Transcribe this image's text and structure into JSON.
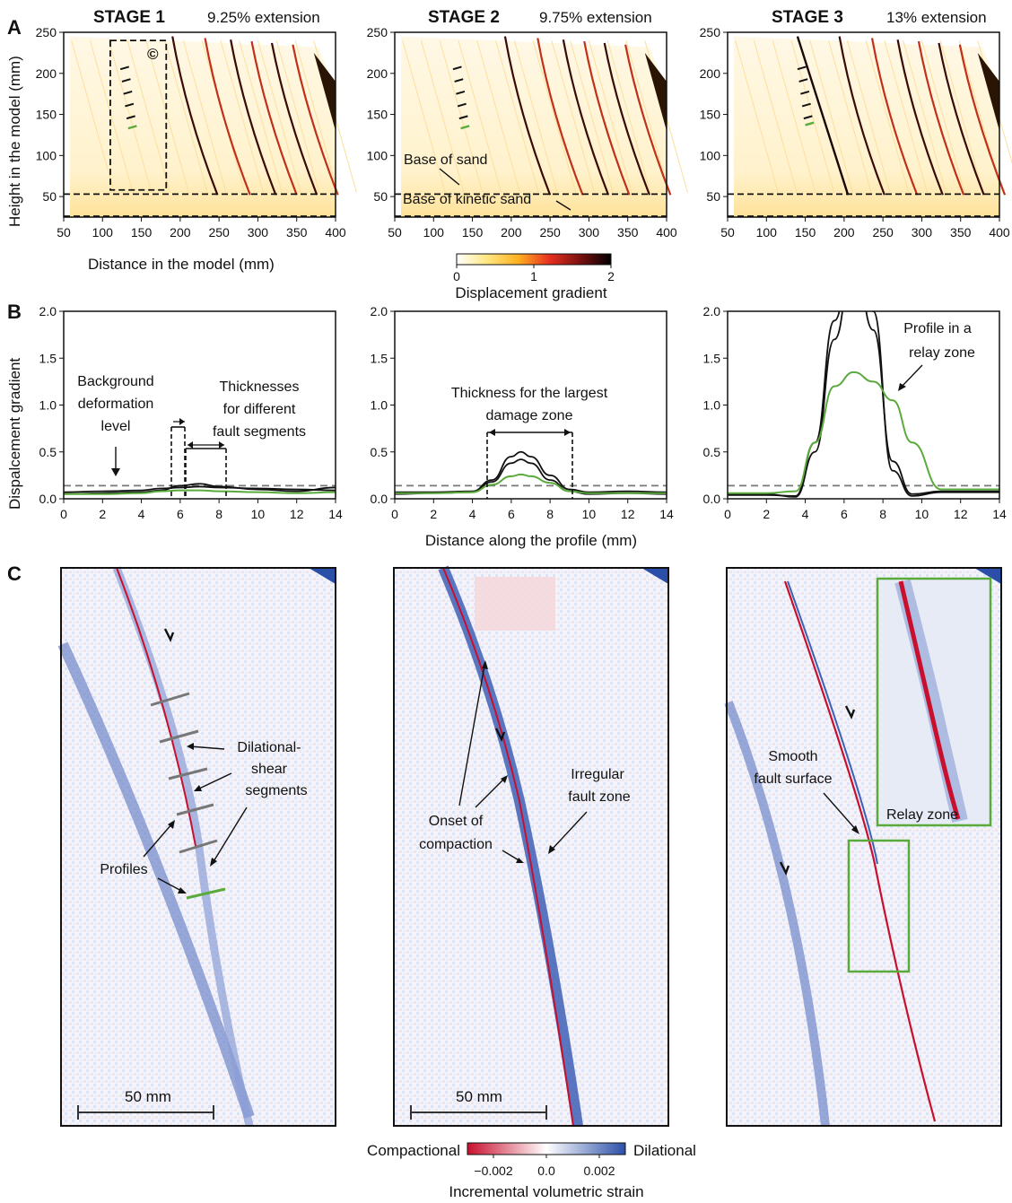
{
  "panels": {
    "a": "A",
    "b": "B",
    "c": "C"
  },
  "stages": [
    {
      "title": "STAGE 1",
      "extension": "9.25% extension"
    },
    {
      "title": "STAGE 2",
      "extension": "9.75% extension"
    },
    {
      "title": "STAGE 3",
      "extension": "13% extension"
    }
  ],
  "rowA": {
    "ylabel": "Height in the model (mm)",
    "xlabel": "Distance in the model (mm)",
    "xticks": [
      "50",
      "100",
      "150",
      "200",
      "250",
      "300",
      "350",
      "400"
    ],
    "yticks": [
      "50",
      "100",
      "150",
      "200",
      "250"
    ],
    "circle_c": "©",
    "ann_base_sand": "Base of sand",
    "ann_base_kinetic": "Base of kinetic sand",
    "colorbar_label": "Displacement gradient",
    "colorbar_ticks": [
      "0",
      "1",
      "2"
    ]
  },
  "rowB": {
    "ylabel": "Dispalcement gradient",
    "xlabel": "Distance along the profile (mm)",
    "xticks": [
      "0",
      "2",
      "4",
      "6",
      "8",
      "10",
      "12",
      "14"
    ],
    "yticks": [
      "0.0",
      "0.5",
      "1.0",
      "1.5",
      "2.0"
    ],
    "ann_background": [
      "Background",
      "deformation",
      "level"
    ],
    "ann_thicknesses": [
      "Thicknesses",
      "for different",
      "fault segments"
    ],
    "ann_largest": [
      "Thickness for the largest",
      "damage zone"
    ],
    "ann_relay": [
      "Profile in a",
      "relay zone"
    ]
  },
  "rowC": {
    "ann_dilational": [
      "Dilational-",
      "shear",
      "segments"
    ],
    "ann_profiles": "Profiles",
    "ann_onset": [
      "Onset of",
      "compaction"
    ],
    "ann_irregular": [
      "Irregular",
      "fault zone"
    ],
    "ann_smooth": [
      "Smooth",
      "fault surface"
    ],
    "ann_relay_zone": "Relay zone",
    "scale_bar": "50 mm",
    "cb_left": "Compactional",
    "cb_right": "Dilational",
    "cb_ticks": [
      "−0.002",
      "0.0",
      "0.002"
    ],
    "cb_label": "Incremental volumetric strain"
  },
  "colors": {
    "profile_black": "#111111",
    "profile_green": "#5aaa3c",
    "background_dash": "#777777",
    "dilational": "#2b4fa8",
    "compactional": "#c8102e"
  },
  "chart_data": [
    {
      "type": "line",
      "panel": "B stage 1",
      "xlabel": "Distance along the profile (mm)",
      "ylabel": "Dispalcement gradient",
      "xlim": [
        0,
        14
      ],
      "ylim": [
        0,
        2.0
      ],
      "background_level": 0.14,
      "x": [
        0,
        2,
        4,
        5,
        6,
        7,
        8,
        10,
        12,
        14
      ],
      "series": [
        {
          "color": "black",
          "values": [
            0.05,
            0.06,
            0.07,
            0.09,
            0.14,
            0.16,
            0.13,
            0.1,
            0.08,
            0.12
          ]
        },
        {
          "color": "black",
          "values": [
            0.07,
            0.08,
            0.09,
            0.11,
            0.12,
            0.13,
            0.12,
            0.11,
            0.1,
            0.09
          ]
        },
        {
          "color": "green",
          "values": [
            0.05,
            0.05,
            0.06,
            0.08,
            0.09,
            0.09,
            0.08,
            0.07,
            0.06,
            0.07
          ]
        }
      ]
    },
    {
      "type": "line",
      "panel": "B stage 2",
      "xlim": [
        0,
        14
      ],
      "ylim": [
        0,
        2.0
      ],
      "background_level": 0.14,
      "x": [
        0,
        2,
        4,
        5,
        6,
        6.5,
        7,
        8,
        9,
        10,
        12,
        14
      ],
      "series": [
        {
          "color": "black",
          "values": [
            0.07,
            0.07,
            0.08,
            0.2,
            0.45,
            0.5,
            0.45,
            0.25,
            0.1,
            0.07,
            0.08,
            0.07
          ]
        },
        {
          "color": "black",
          "values": [
            0.05,
            0.06,
            0.07,
            0.18,
            0.38,
            0.42,
            0.38,
            0.2,
            0.08,
            0.05,
            0.06,
            0.05
          ]
        },
        {
          "color": "green",
          "values": [
            0.06,
            0.06,
            0.07,
            0.15,
            0.24,
            0.26,
            0.24,
            0.17,
            0.08,
            0.06,
            0.06,
            0.06
          ]
        }
      ]
    },
    {
      "type": "line",
      "panel": "B stage 3",
      "xlim": [
        0,
        14
      ],
      "ylim": [
        0,
        2.0
      ],
      "background_level": 0.14,
      "x": [
        0,
        2,
        3.5,
        4.5,
        5.5,
        6.5,
        7.5,
        8.5,
        9.5,
        11,
        14
      ],
      "series": [
        {
          "color": "black",
          "values": [
            0.05,
            0.05,
            0.02,
            0.5,
            1.7,
            2.6,
            1.8,
            0.4,
            0.05,
            0.08,
            0.08
          ]
        },
        {
          "color": "black",
          "values": [
            0.04,
            0.04,
            0.03,
            0.6,
            1.9,
            2.8,
            2.0,
            0.3,
            0.03,
            0.07,
            0.07
          ]
        },
        {
          "color": "green",
          "values": [
            0.06,
            0.06,
            0.08,
            0.6,
            1.2,
            1.35,
            1.25,
            1.05,
            0.6,
            0.1,
            0.1
          ]
        }
      ]
    }
  ]
}
